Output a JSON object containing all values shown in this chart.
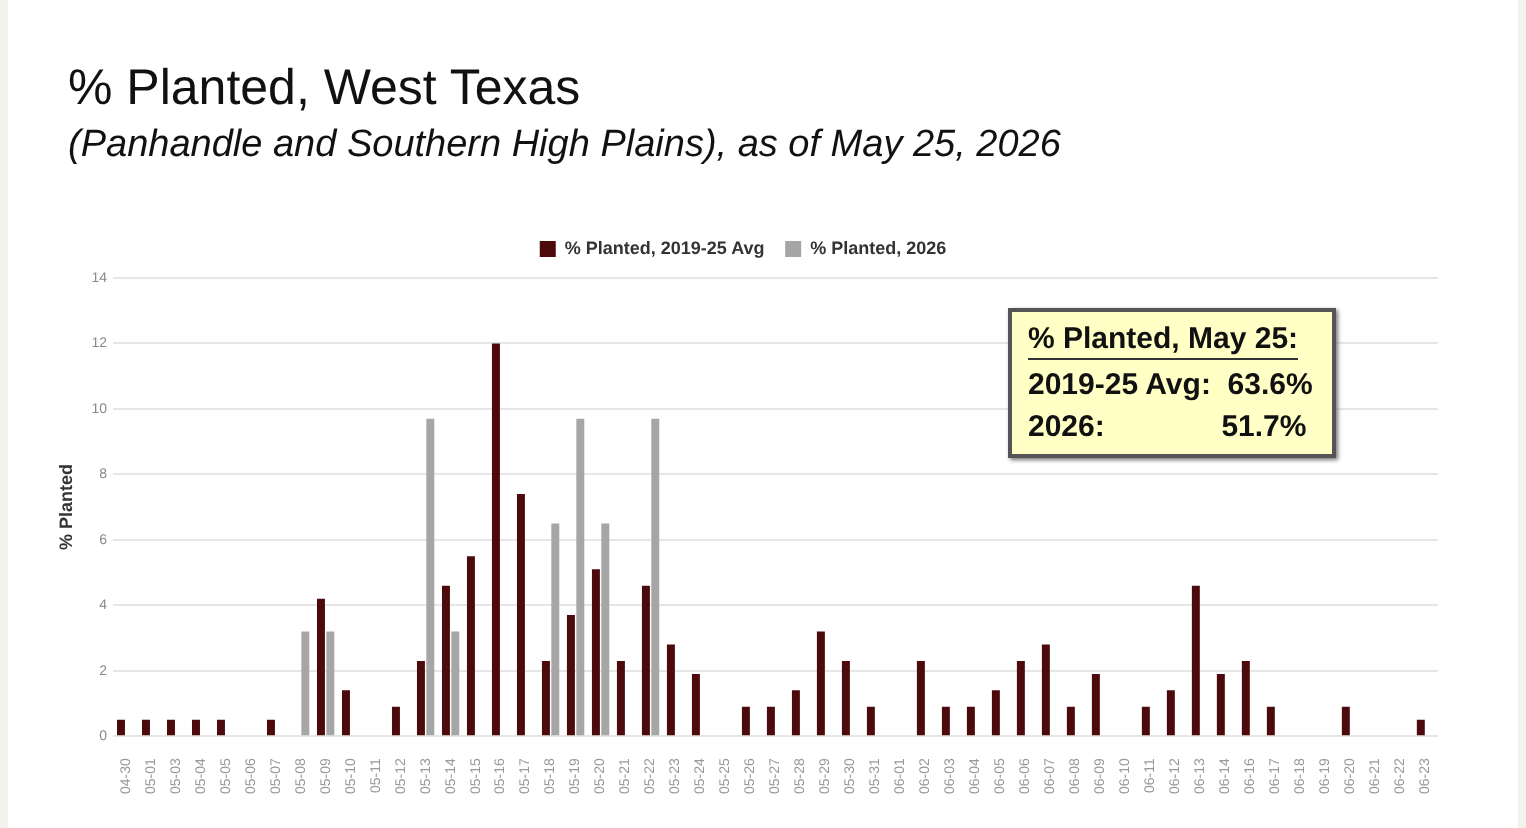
{
  "chart_data": {
    "type": "bar",
    "title": "% Planted, West Texas",
    "subtitle": "(Panhandle and Southern High Plains), as of May 25, 2026",
    "ylabel": "% Planted",
    "categories": [
      "04-30",
      "05-01",
      "05-03",
      "05-04",
      "05-05",
      "05-06",
      "05-07",
      "05-08",
      "05-09",
      "05-10",
      "05-11",
      "05-12",
      "05-13",
      "05-14",
      "05-15",
      "05-16",
      "05-17",
      "05-18",
      "05-19",
      "05-20",
      "05-21",
      "05-22",
      "05-23",
      "05-24",
      "05-25",
      "05-26",
      "05-27",
      "05-28",
      "05-29",
      "05-30",
      "05-31",
      "06-01",
      "06-02",
      "06-03",
      "06-04",
      "06-05",
      "06-06",
      "06-07",
      "06-08",
      "06-09",
      "06-10",
      "06-11",
      "06-12",
      "06-13",
      "06-14",
      "06-16",
      "06-17",
      "06-18",
      "06-19",
      "06-20",
      "06-21",
      "06-22",
      "06-23"
    ],
    "series": [
      {
        "name": "% Planted, 2019-25 Avg",
        "color": "#4d0a0c",
        "values": [
          0.5,
          0.5,
          0.5,
          0.5,
          0.5,
          0,
          0.5,
          0,
          4.2,
          1.4,
          0,
          0.9,
          2.3,
          4.6,
          5.5,
          12,
          7.4,
          2.3,
          3.7,
          5.1,
          2.3,
          4.6,
          2.8,
          1.9,
          0,
          0.9,
          0.9,
          1.4,
          3.2,
          2.3,
          0.9,
          0,
          2.3,
          0.9,
          0.9,
          1.4,
          2.3,
          2.8,
          0.9,
          1.9,
          0,
          0.9,
          1.4,
          4.6,
          1.9,
          2.3,
          0.9,
          0,
          0,
          0.9,
          0,
          0,
          0.5
        ]
      },
      {
        "name": "% Planted, 2026",
        "color": "#a6a6a6",
        "values": [
          null,
          null,
          null,
          null,
          null,
          null,
          null,
          3.2,
          3.2,
          null,
          null,
          null,
          9.7,
          3.2,
          null,
          null,
          null,
          6.5,
          9.7,
          6.5,
          null,
          9.7,
          null,
          null,
          null,
          null,
          null,
          null,
          null,
          null,
          null,
          null,
          null,
          null,
          null,
          null,
          null,
          null,
          null,
          null,
          null,
          null,
          null,
          null,
          null,
          null,
          null,
          null,
          null,
          null,
          null,
          null,
          null
        ]
      }
    ],
    "ylim": [
      0,
      14
    ],
    "yticks": [
      0,
      2,
      4,
      6,
      8,
      10,
      12,
      14
    ],
    "grid": "y",
    "legend": "top",
    "annotations": [
      "% Planted, May 25:",
      "2019-25 Avg:  63.6%",
      "2026:              51.7%"
    ]
  }
}
